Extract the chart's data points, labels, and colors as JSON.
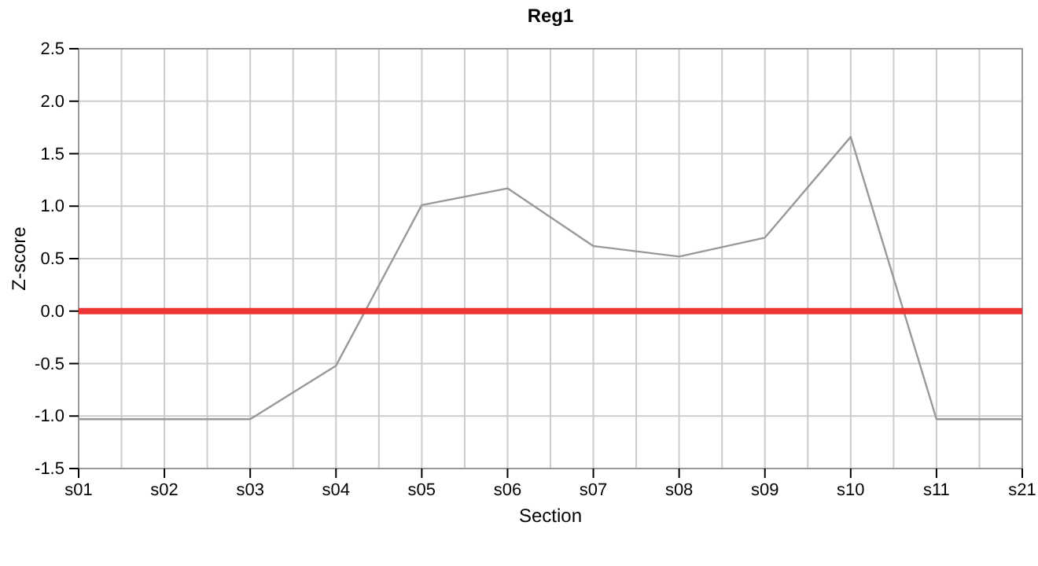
{
  "chart_data": {
    "type": "line",
    "title": "Reg1",
    "xlabel": "Section",
    "ylabel": "Z-score",
    "categories": [
      "s01",
      "s02",
      "s03",
      "s04",
      "s05",
      "s06",
      "s07",
      "s08",
      "s09",
      "s10",
      "s11",
      "s21"
    ],
    "series": [
      {
        "color": "#999999",
        "values": [
          -1.03,
          -1.03,
          -1.03,
          -0.52,
          1.01,
          1.17,
          0.62,
          0.52,
          0.7,
          1.66,
          -1.03,
          -1.03
        ]
      }
    ],
    "ylim": [
      -1.5,
      2.5
    ],
    "yticks": [
      {
        "value": -1.5,
        "label": "-1.5"
      },
      {
        "value": -1,
        "label": "-1.0"
      },
      {
        "value": -0.5,
        "label": "-0.5"
      },
      {
        "value": 0,
        "label": "0.0"
      },
      {
        "value": 0.5,
        "label": "0.5"
      },
      {
        "value": 1,
        "label": "1.0"
      },
      {
        "value": 1.5,
        "label": "1.5"
      },
      {
        "value": 2,
        "label": "2.0"
      },
      {
        "value": 2.5,
        "label": "2.5"
      }
    ],
    "grid": true,
    "marker": "none",
    "line_style": "solid",
    "ref_lines": [
      {
        "axis": "y",
        "value": 0,
        "color": "#ee3333"
      }
    ]
  }
}
